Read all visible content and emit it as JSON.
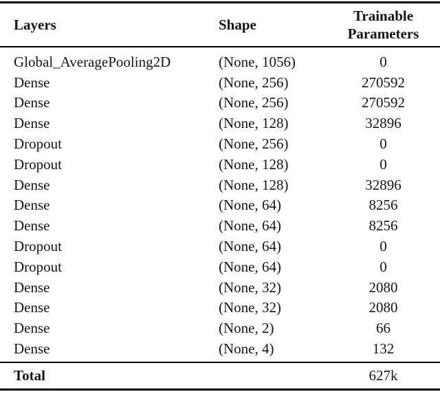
{
  "table": {
    "headers": {
      "layers": "Layers",
      "shape": "Shape",
      "params": "Trainable Parameters"
    },
    "rows": [
      {
        "layer": "Global_AveragePooling2D",
        "shape": "(None, 1056)",
        "params": "0"
      },
      {
        "layer": "Dense",
        "shape": "(None, 256)",
        "params": "270592"
      },
      {
        "layer": "Dense",
        "shape": "(None, 256)",
        "params": "270592"
      },
      {
        "layer": "Dense",
        "shape": "(None, 128)",
        "params": "32896"
      },
      {
        "layer": "Dropout",
        "shape": "(None, 256)",
        "params": "0"
      },
      {
        "layer": "Dropout",
        "shape": "(None, 128)",
        "params": "0"
      },
      {
        "layer": "Dense",
        "shape": "(None, 128)",
        "params": "32896"
      },
      {
        "layer": "Dense",
        "shape": "(None, 64)",
        "params": "8256"
      },
      {
        "layer": "Dense",
        "shape": "(None, 64)",
        "params": "8256"
      },
      {
        "layer": "Dropout",
        "shape": "(None, 64)",
        "params": "0"
      },
      {
        "layer": "Dropout",
        "shape": "(None, 64)",
        "params": "0"
      },
      {
        "layer": "Dense",
        "shape": "(None, 32)",
        "params": "2080"
      },
      {
        "layer": "Dense",
        "shape": "(None, 32)",
        "params": "2080"
      },
      {
        "layer": "Dense",
        "shape": "(None, 2)",
        "params": "66"
      },
      {
        "layer": "Dense",
        "shape": "(None, 4)",
        "params": "132"
      }
    ],
    "total": {
      "label": "Total",
      "params": "627k"
    },
    "colors": {
      "text": "#141414",
      "rule": "#000000",
      "background": "#ffffff"
    }
  }
}
